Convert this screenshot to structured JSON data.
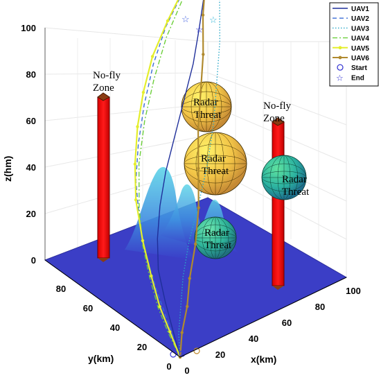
{
  "chart_data": {
    "type": "line",
    "view": "3d",
    "axes": {
      "x": {
        "label": "x(km)",
        "range": [
          0,
          100
        ],
        "ticks": [
          0,
          20,
          40,
          60,
          80,
          100
        ]
      },
      "y": {
        "label": "y(km)",
        "range": [
          0,
          100
        ],
        "ticks": [
          0,
          20,
          40,
          60,
          80
        ]
      },
      "z": {
        "label": "z(hm)",
        "range": [
          0,
          100
        ],
        "ticks": [
          0,
          20,
          40,
          60,
          80,
          100
        ]
      }
    },
    "grid": true,
    "legend": {
      "position": "top-right",
      "entries": [
        {
          "label": "UAV1",
          "color": "#1f2f9a",
          "style": "solid"
        },
        {
          "label": "UAV2",
          "color": "#3a6cd6",
          "style": "dashed"
        },
        {
          "label": "UAV3",
          "color": "#29a8c8",
          "style": "dotted"
        },
        {
          "label": "UAV4",
          "color": "#6ccf3a",
          "style": "dashdot"
        },
        {
          "label": "UAV5",
          "color": "#e4ee2c",
          "style": "solid-marker"
        },
        {
          "label": "UAV6",
          "color": "#b08a2e",
          "style": "solid-marker"
        },
        {
          "label": "Start",
          "color": "#2a2ad0",
          "marker": "circle"
        },
        {
          "label": "End",
          "color": "#2a2ad0",
          "marker": "star"
        }
      ]
    },
    "obstacles": [
      {
        "type": "no-fly-zone",
        "label": "No-fly Zone",
        "x": 5,
        "y": 85,
        "height": 100
      },
      {
        "type": "no-fly-zone",
        "label": "No-fly Zone",
        "x": 88,
        "y": 25,
        "height": 85
      }
    ],
    "threats": [
      {
        "type": "radar",
        "label": "Radar Threat",
        "x": 70,
        "y": 85,
        "z": 75,
        "r": 12
      },
      {
        "type": "radar",
        "label": "Radar Threat",
        "x": 70,
        "y": 70,
        "z": 50,
        "r": 15
      },
      {
        "type": "radar",
        "label": "Radar Threat",
        "x": 92,
        "y": 55,
        "z": 40,
        "r": 12
      },
      {
        "type": "radar",
        "label": "Radar Threat",
        "x": 60,
        "y": 30,
        "z": 20,
        "r": 12
      }
    ],
    "series": [
      {
        "name": "UAV1",
        "x": [
          0,
          2,
          4,
          8,
          14,
          22,
          32,
          44,
          56,
          68,
          78,
          88,
          100
        ],
        "y": [
          0,
          8,
          16,
          26,
          34,
          42,
          50,
          58,
          66,
          74,
          82,
          90,
          100
        ],
        "z": [
          0,
          8,
          16,
          24,
          32,
          40,
          48,
          56,
          64,
          72,
          80,
          90,
          100
        ]
      },
      {
        "name": "UAV2",
        "x": [
          0,
          1,
          2,
          4,
          8,
          14,
          22,
          32,
          44,
          58,
          72,
          86,
          100
        ],
        "y": [
          0,
          10,
          20,
          30,
          40,
          50,
          58,
          66,
          74,
          82,
          88,
          94,
          100
        ],
        "z": [
          0,
          10,
          20,
          30,
          40,
          50,
          60,
          70,
          80,
          88,
          94,
          98,
          100
        ]
      },
      {
        "name": "UAV3",
        "x": [
          0,
          4,
          10,
          18,
          28,
          40,
          52,
          64,
          74,
          84,
          92,
          98,
          100
        ],
        "y": [
          0,
          6,
          12,
          20,
          28,
          36,
          44,
          54,
          64,
          74,
          84,
          94,
          100
        ],
        "z": [
          0,
          6,
          12,
          20,
          28,
          36,
          46,
          56,
          66,
          76,
          86,
          96,
          100
        ]
      },
      {
        "name": "UAV4",
        "x": [
          0,
          1,
          3,
          6,
          10,
          16,
          24,
          34,
          46,
          60,
          74,
          88,
          100
        ],
        "y": [
          0,
          10,
          20,
          30,
          40,
          50,
          60,
          68,
          76,
          84,
          90,
          96,
          100
        ],
        "z": [
          0,
          6,
          12,
          20,
          28,
          38,
          50,
          62,
          72,
          82,
          90,
          96,
          100
        ]
      },
      {
        "name": "UAV5",
        "x": [
          0,
          2,
          4,
          7,
          10,
          14,
          20,
          28,
          38,
          50,
          64,
          80,
          96
        ],
        "y": [
          0,
          10,
          20,
          30,
          40,
          50,
          58,
          66,
          74,
          82,
          88,
          94,
          98
        ],
        "z": [
          0,
          6,
          12,
          20,
          30,
          42,
          52,
          62,
          70,
          78,
          86,
          94,
          100
        ]
      },
      {
        "name": "UAV6",
        "x": [
          0,
          6,
          14,
          22,
          32,
          42,
          50,
          58,
          66,
          74,
          82,
          90,
          98
        ],
        "y": [
          0,
          6,
          12,
          20,
          28,
          38,
          48,
          58,
          66,
          74,
          84,
          92,
          98
        ],
        "z": [
          0,
          6,
          12,
          18,
          26,
          34,
          44,
          54,
          64,
          74,
          84,
          92,
          100
        ]
      }
    ]
  }
}
